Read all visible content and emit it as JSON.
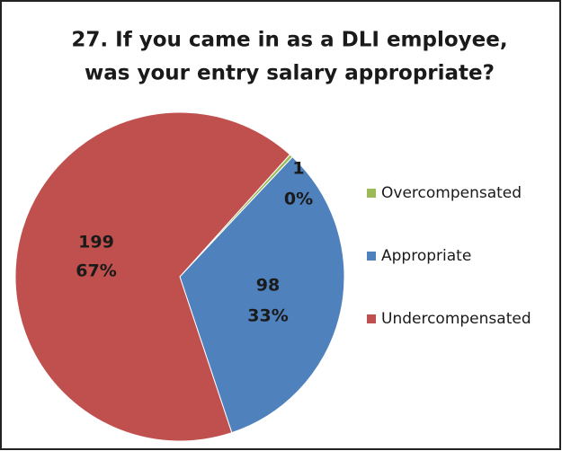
{
  "chart_data": {
    "type": "pie",
    "title": [
      "27.  If you came in as a DLI employee,",
      "was your entry salary appropriate?"
    ],
    "categories": [
      "Overcompensated",
      "Appropriate",
      "Undercompensated"
    ],
    "values": [
      1,
      98,
      199
    ],
    "percent_labels": [
      "0%",
      "33%",
      "67%"
    ],
    "colors": [
      "#9bbb59",
      "#4f81bd",
      "#c0504d"
    ],
    "legend": "right"
  }
}
